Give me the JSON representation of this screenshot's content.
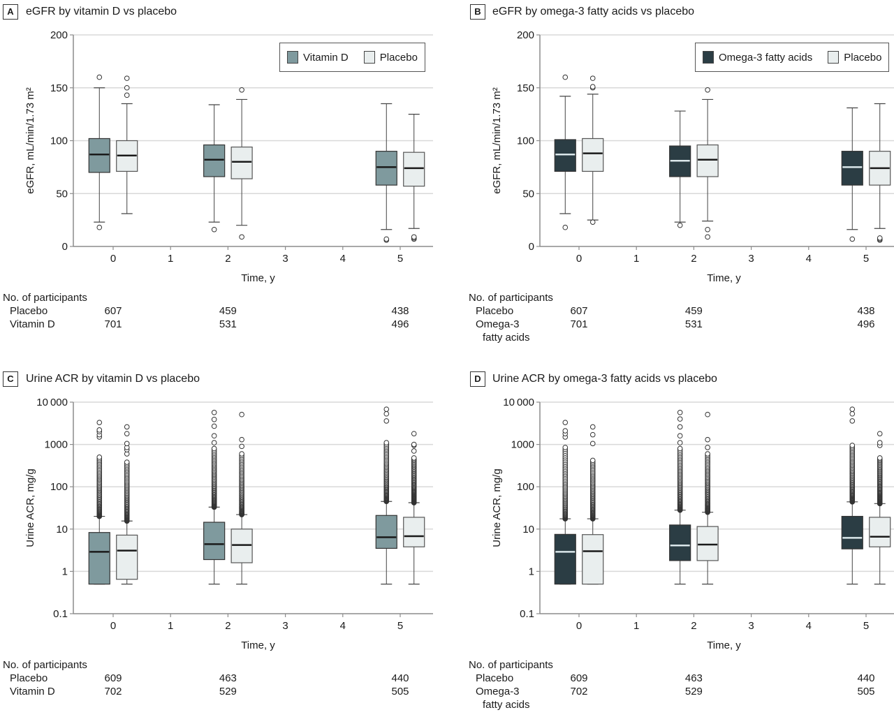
{
  "colors": {
    "vitamin_d": "#7f9a9e",
    "omega3": "#2b3d44",
    "placebo": "#e9eeee",
    "gridline": "#d9d9d9",
    "axis": "#8c8c8c",
    "median_on_dark": "#dbe7ea",
    "median_on_light": "#1a1a1a"
  },
  "chart_data": [
    {
      "id": "A",
      "type": "box",
      "panel_label": "A",
      "title": "eGFR by vitamin D vs placebo",
      "xlabel": "Time, y",
      "ylabel": "eGFR, mL/min/1.73 m²",
      "yscale": "linear",
      "ylim": [
        0,
        200
      ],
      "yticks": [
        0,
        50,
        100,
        150,
        200
      ],
      "ytick_labels": [
        "0",
        "50",
        "100",
        "150",
        "200"
      ],
      "xlim": [
        -0.7,
        5.6
      ],
      "xticks": [
        0,
        1,
        2,
        3,
        4,
        5
      ],
      "xtick_labels": [
        "0",
        "1",
        "2",
        "3",
        "4",
        "5"
      ],
      "grid": true,
      "legend_position": "top-right",
      "legend": [
        {
          "label": "Vitamin D",
          "color_key": "vitamin_d"
        },
        {
          "label": "Placebo",
          "color_key": "placebo"
        }
      ],
      "series": [
        {
          "name": "Vitamin D",
          "color_key": "vitamin_d",
          "offset": -0.24,
          "median_color_key": "median_on_light",
          "boxes": [
            {
              "x": 0,
              "whisker_low": 23,
              "q1": 70,
              "median": 87,
              "q3": 102,
              "whisker_high": 150,
              "outliers": [
                18,
                160
              ]
            },
            {
              "x": 2,
              "whisker_low": 23,
              "q1": 66,
              "median": 82,
              "q3": 96,
              "whisker_high": 134,
              "outliers": [
                16
              ]
            },
            {
              "x": 5,
              "whisker_low": 16,
              "q1": 58,
              "median": 75,
              "q3": 90,
              "whisker_high": 135,
              "outliers": [
                6,
                7
              ]
            }
          ]
        },
        {
          "name": "Placebo",
          "color_key": "placebo",
          "offset": 0.24,
          "median_color_key": "median_on_light",
          "boxes": [
            {
              "x": 0,
              "whisker_low": 31,
              "q1": 71,
              "median": 86,
              "q3": 100,
              "whisker_high": 135,
              "outliers": [
                143,
                150,
                159
              ]
            },
            {
              "x": 2,
              "whisker_low": 20,
              "q1": 64,
              "median": 80,
              "q3": 94,
              "whisker_high": 139,
              "outliers": [
                9,
                148
              ]
            },
            {
              "x": 5,
              "whisker_low": 17,
              "q1": 57,
              "median": 74,
              "q3": 89,
              "whisker_high": 125,
              "outliers": [
                7,
                8,
                9
              ]
            }
          ]
        }
      ],
      "participants": {
        "heading": "No. of participants",
        "rows": [
          {
            "label": [
              "Placebo"
            ],
            "values": [
              "607",
              "459",
              "438"
            ]
          },
          {
            "label": [
              "Vitamin D"
            ],
            "values": [
              "701",
              "531",
              "496"
            ]
          }
        ],
        "x": [
          0,
          2,
          5
        ]
      }
    },
    {
      "id": "B",
      "type": "box",
      "panel_label": "B",
      "title": "eGFR by omega-3 fatty acids vs placebo",
      "xlabel": "Time, y",
      "ylabel": "eGFR, mL/min/1.73 m²",
      "yscale": "linear",
      "ylim": [
        0,
        200
      ],
      "yticks": [
        0,
        50,
        100,
        150,
        200
      ],
      "ytick_labels": [
        "0",
        "50",
        "100",
        "150",
        "200"
      ],
      "xlim": [
        -0.7,
        5.6
      ],
      "xticks": [
        0,
        1,
        2,
        3,
        4,
        5
      ],
      "xtick_labels": [
        "0",
        "1",
        "2",
        "3",
        "4",
        "5"
      ],
      "grid": true,
      "legend_position": "top-right",
      "legend": [
        {
          "label": "Omega-3 fatty acids",
          "color_key": "omega3"
        },
        {
          "label": "Placebo",
          "color_key": "placebo"
        }
      ],
      "series": [
        {
          "name": "Omega-3 fatty acids",
          "color_key": "omega3",
          "offset": -0.24,
          "median_color_key": "median_on_dark",
          "boxes": [
            {
              "x": 0,
              "whisker_low": 31,
              "q1": 71,
              "median": 87,
              "q3": 101,
              "whisker_high": 142,
              "outliers": [
                18,
                160
              ]
            },
            {
              "x": 2,
              "whisker_low": 23,
              "q1": 66,
              "median": 81,
              "q3": 95,
              "whisker_high": 128,
              "outliers": [
                20
              ]
            },
            {
              "x": 5,
              "whisker_low": 16,
              "q1": 58,
              "median": 75,
              "q3": 90,
              "whisker_high": 131,
              "outliers": [
                7
              ]
            }
          ]
        },
        {
          "name": "Placebo",
          "color_key": "placebo",
          "offset": 0.24,
          "median_color_key": "median_on_light",
          "boxes": [
            {
              "x": 0,
              "whisker_low": 25,
              "q1": 71,
              "median": 88,
              "q3": 102,
              "whisker_high": 144,
              "outliers": [
                23,
                150,
                151,
                159
              ]
            },
            {
              "x": 2,
              "whisker_low": 24,
              "q1": 66,
              "median": 82,
              "q3": 96,
              "whisker_high": 139,
              "outliers": [
                9,
                16,
                148
              ]
            },
            {
              "x": 5,
              "whisker_low": 17,
              "q1": 58,
              "median": 74,
              "q3": 90,
              "whisker_high": 135,
              "outliers": [
                6,
                7,
                8
              ]
            }
          ]
        }
      ],
      "participants": {
        "heading": "No. of participants",
        "rows": [
          {
            "label": [
              "Placebo"
            ],
            "values": [
              "607",
              "459",
              "438"
            ]
          },
          {
            "label": [
              "Omega-3",
              "fatty acids"
            ],
            "values": [
              "701",
              "531",
              "496"
            ]
          }
        ],
        "x": [
          0,
          2,
          5
        ]
      }
    },
    {
      "id": "C",
      "type": "box",
      "panel_label": "C",
      "title": "Urine ACR by vitamin D vs placebo",
      "xlabel": "Time, y",
      "ylabel": "Urine ACR, mg/g",
      "yscale": "log",
      "ylim": [
        0.1,
        10000
      ],
      "yticks": [
        0.1,
        1,
        10,
        100,
        1000,
        10000
      ],
      "ytick_labels": [
        "0.1",
        "1",
        "10",
        "100",
        "1000",
        "10 000"
      ],
      "xlim": [
        -0.7,
        5.6
      ],
      "xticks": [
        0,
        1,
        2,
        3,
        4,
        5
      ],
      "xtick_labels": [
        "0",
        "1",
        "2",
        "3",
        "4",
        "5"
      ],
      "grid": true,
      "legend_position": "none",
      "legend": [],
      "series": [
        {
          "name": "Vitamin D",
          "color_key": "vitamin_d",
          "offset": -0.24,
          "median_color_key": "median_on_light",
          "boxes": [
            {
              "x": 0,
              "whisker_low": 0.5,
              "q1": 0.5,
              "median": 2.9,
              "q3": 8.3,
              "whisker_high": 20,
              "outlier_range": [
                20,
                500
              ],
              "outliers": [
                1500,
                1700,
                2000,
                2200,
                3300
              ]
            },
            {
              "x": 2,
              "whisker_low": 0.5,
              "q1": 1.9,
              "median": 4.4,
              "q3": 14.5,
              "whisker_high": 33,
              "outlier_range": [
                33,
                800
              ],
              "outliers": [
                1100,
                1600,
                2700,
                3900,
                5700
              ]
            },
            {
              "x": 5,
              "whisker_low": 0.5,
              "q1": 3.5,
              "median": 6.4,
              "q3": 21,
              "whisker_high": 45,
              "outlier_range": [
                45,
                1100
              ],
              "outliers": [
                3600,
                5300,
                6800
              ]
            }
          ]
        },
        {
          "name": "Placebo",
          "color_key": "placebo",
          "offset": 0.24,
          "median_color_key": "median_on_light",
          "boxes": [
            {
              "x": 0,
              "whisker_low": 0.5,
              "q1": 0.65,
              "median": 3.1,
              "q3": 7.2,
              "whisker_high": 15.5,
              "outlier_range": [
                15.5,
                380
              ],
              "outliers": [
                600,
                750,
                850,
                1050,
                1800,
                2600
              ]
            },
            {
              "x": 2,
              "whisker_low": 0.5,
              "q1": 1.6,
              "median": 4.2,
              "q3": 10,
              "whisker_high": 22,
              "outlier_range": [
                22,
                600
              ],
              "outliers": [
                900,
                1300,
                5100
              ]
            },
            {
              "x": 5,
              "whisker_low": 0.5,
              "q1": 3.8,
              "median": 6.8,
              "q3": 19,
              "whisker_high": 42,
              "outlier_range": [
                42,
                480
              ],
              "outliers": [
                700,
                950,
                1000,
                1800
              ]
            }
          ]
        }
      ],
      "participants": {
        "heading": "No. of participants",
        "rows": [
          {
            "label": [
              "Placebo"
            ],
            "values": [
              "609",
              "463",
              "440"
            ]
          },
          {
            "label": [
              "Vitamin D"
            ],
            "values": [
              "702",
              "529",
              "505"
            ]
          }
        ],
        "x": [
          0,
          2,
          5
        ]
      }
    },
    {
      "id": "D",
      "type": "box",
      "panel_label": "D",
      "title": "Urine ACR by omega-3 fatty acids vs placebo",
      "xlabel": "Time, y",
      "ylabel": "Urine ACR, mg/g",
      "yscale": "log",
      "ylim": [
        0.1,
        10000
      ],
      "yticks": [
        0.1,
        1,
        10,
        100,
        1000,
        10000
      ],
      "ytick_labels": [
        "0.1",
        "1",
        "10",
        "100",
        "1000",
        "10 000"
      ],
      "xlim": [
        -0.7,
        5.6
      ],
      "xticks": [
        0,
        1,
        2,
        3,
        4,
        5
      ],
      "xtick_labels": [
        "0",
        "1",
        "2",
        "3",
        "4",
        "5"
      ],
      "grid": true,
      "legend_position": "none",
      "legend": [],
      "series": [
        {
          "name": "Omega-3 fatty acids",
          "color_key": "omega3",
          "offset": -0.24,
          "median_color_key": "median_on_dark",
          "boxes": [
            {
              "x": 0,
              "whisker_low": 0.5,
              "q1": 0.5,
              "median": 2.9,
              "q3": 7.5,
              "whisker_high": 17.5,
              "outlier_range": [
                17.5,
                850
              ],
              "outliers": [
                1500,
                1800,
                2100,
                3300
              ]
            },
            {
              "x": 2,
              "whisker_low": 0.5,
              "q1": 1.8,
              "median": 4.1,
              "q3": 12.5,
              "whisker_high": 28,
              "outlier_range": [
                28,
                800
              ],
              "outliers": [
                1100,
                1600,
                2600,
                4000,
                5700
              ]
            },
            {
              "x": 5,
              "whisker_low": 0.5,
              "q1": 3.4,
              "median": 6.2,
              "q3": 20,
              "whisker_high": 44,
              "outlier_range": [
                44,
                950
              ],
              "outliers": [
                3600,
                5300,
                6800
              ]
            }
          ]
        },
        {
          "name": "Placebo",
          "color_key": "placebo",
          "offset": 0.24,
          "median_color_key": "median_on_light",
          "boxes": [
            {
              "x": 0,
              "whisker_low": 0.5,
              "q1": 0.5,
              "median": 3.0,
              "q3": 7.4,
              "whisker_high": 17.5,
              "outlier_range": [
                17.5,
                420
              ],
              "outliers": [
                1050,
                1700,
                2600
              ]
            },
            {
              "x": 2,
              "whisker_low": 0.5,
              "q1": 1.8,
              "median": 4.3,
              "q3": 11.5,
              "whisker_high": 25,
              "outlier_range": [
                25,
                600
              ],
              "outliers": [
                850,
                1300,
                5100
              ]
            },
            {
              "x": 5,
              "whisker_low": 0.5,
              "q1": 3.8,
              "median": 6.6,
              "q3": 19,
              "whisker_high": 40,
              "outlier_range": [
                40,
                480
              ],
              "outliers": [
                950,
                1100,
                1800
              ]
            }
          ]
        }
      ],
      "participants": {
        "heading": "No. of participants",
        "rows": [
          {
            "label": [
              "Placebo"
            ],
            "values": [
              "609",
              "463",
              "440"
            ]
          },
          {
            "label": [
              "Omega-3",
              "fatty acids"
            ],
            "values": [
              "702",
              "529",
              "505"
            ]
          }
        ],
        "x": [
          0,
          2,
          5
        ]
      }
    }
  ]
}
